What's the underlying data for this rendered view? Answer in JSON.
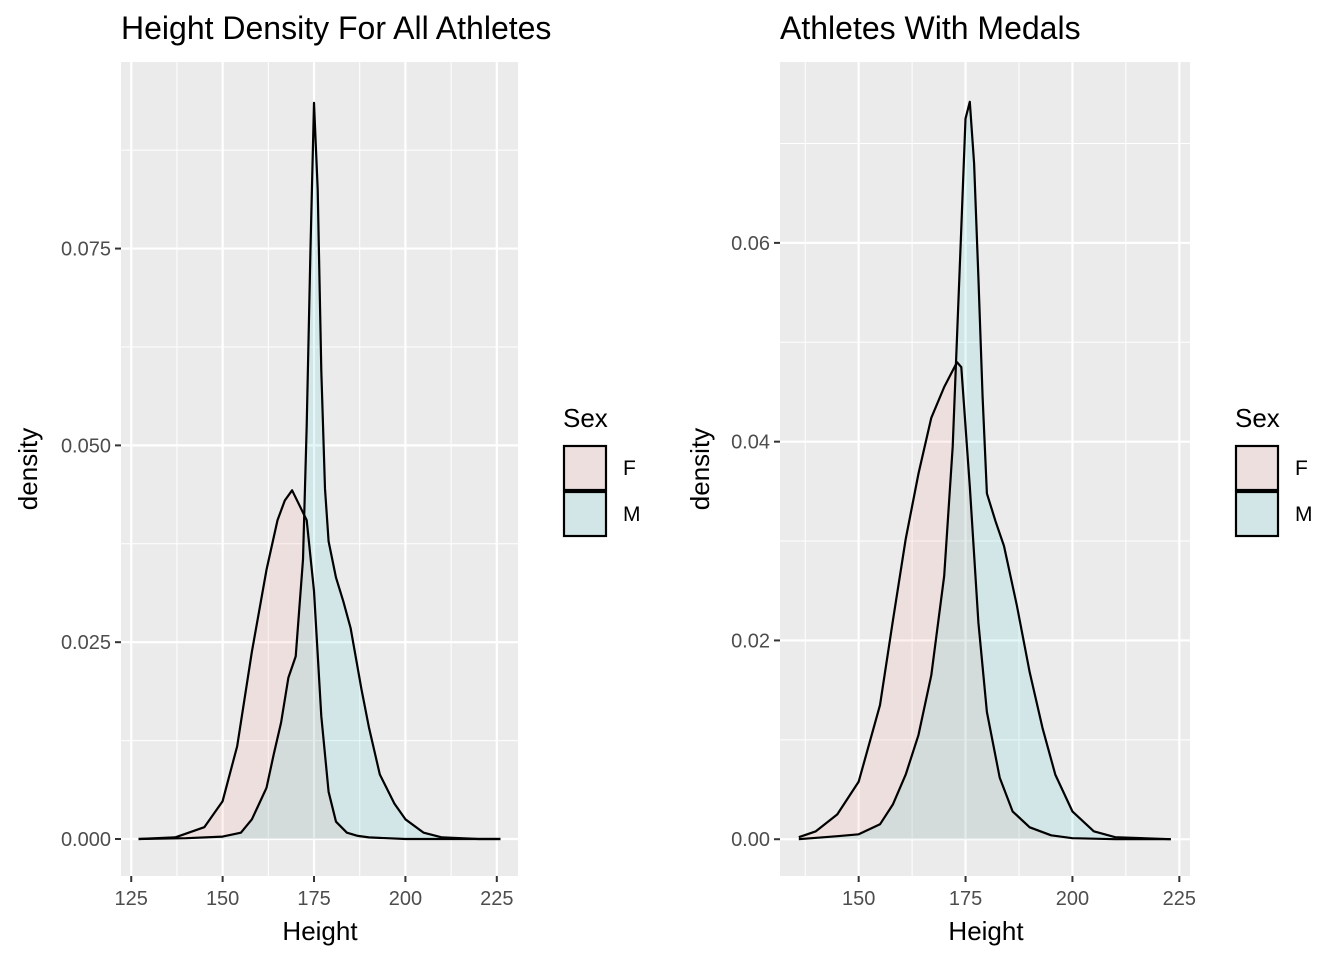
{
  "chart_data": [
    {
      "type": "area",
      "title": "Height Density For All Athletes",
      "xlabel": "Height",
      "ylabel": "density",
      "xlim": [
        122.2,
        230.8
      ],
      "ylim": [
        -0.0047,
        0.0987
      ],
      "xticks": [
        125,
        150,
        175,
        200,
        225
      ],
      "xtick_labels": [
        "125",
        "150",
        "175",
        "200",
        "225"
      ],
      "yticks": [
        0,
        0.025,
        0.05,
        0.075
      ],
      "ytick_labels": [
        "0.000",
        "0.025",
        "0.050",
        "0.075"
      ],
      "grid": true,
      "legend": {
        "title": "Sex",
        "position": "right"
      },
      "series": [
        {
          "name": "F",
          "fill": "#F8766D",
          "x": [
            127,
            137,
            145,
            150,
            154,
            158,
            162,
            165,
            167,
            169,
            171,
            173,
            175,
            177,
            179,
            181,
            184,
            187,
            190,
            195,
            200,
            210,
            226
          ],
          "y": [
            0,
            0.0002,
            0.0015,
            0.0048,
            0.0118,
            0.0238,
            0.0342,
            0.0405,
            0.043,
            0.0443,
            0.0424,
            0.0405,
            0.0315,
            0.0156,
            0.006,
            0.0022,
            0.0008,
            0.0004,
            0.0002,
            0.0001,
            0.0,
            0.0,
            0.0
          ]
        },
        {
          "name": "M",
          "fill": "#00BFC4",
          "x": [
            127,
            140,
            150,
            155,
            158,
            160,
            162,
            164,
            166,
            168,
            170,
            172,
            173,
            174,
            175,
            176,
            177,
            178,
            179,
            181,
            183,
            185,
            188,
            190,
            193,
            197,
            200,
            205,
            210,
            220,
            226
          ],
          "y": [
            0,
            0.0001,
            0.0003,
            0.0008,
            0.0025,
            0.0045,
            0.0065,
            0.0108,
            0.0148,
            0.0205,
            0.0232,
            0.0355,
            0.0525,
            0.0745,
            0.0935,
            0.0825,
            0.0595,
            0.0445,
            0.0378,
            0.0332,
            0.0302,
            0.0268,
            0.019,
            0.0142,
            0.0082,
            0.0045,
            0.0025,
            0.0008,
            0.0002,
            0.0,
            0.0
          ]
        }
      ]
    },
    {
      "type": "area",
      "title": "Athletes With Medals",
      "xlabel": "Height",
      "ylabel": "density",
      "xlim": [
        131.6,
        227.5
      ],
      "ylim": [
        -0.0037,
        0.0782
      ],
      "xticks": [
        150,
        175,
        200,
        225
      ],
      "xtick_labels": [
        "150",
        "175",
        "200",
        "225"
      ],
      "yticks": [
        0,
        0.02,
        0.04,
        0.06
      ],
      "ytick_labels": [
        "0.00",
        "0.02",
        "0.04",
        "0.06"
      ],
      "grid": true,
      "legend": {
        "title": "Sex",
        "position": "right"
      },
      "series": [
        {
          "name": "F",
          "fill": "#F8766D",
          "x": [
            136,
            140,
            145,
            150,
            155,
            158,
            161,
            164,
            167,
            170,
            173,
            174,
            176,
            178,
            180,
            183,
            186,
            190,
            195,
            200,
            210,
            223
          ],
          "y": [
            0.0002,
            0.0008,
            0.0025,
            0.0058,
            0.0135,
            0.022,
            0.0302,
            0.0368,
            0.0424,
            0.0455,
            0.048,
            0.0475,
            0.0355,
            0.0218,
            0.0128,
            0.0062,
            0.0028,
            0.0012,
            0.0004,
            0.0001,
            0.0,
            0.0
          ]
        },
        {
          "name": "M",
          "fill": "#00BFC4",
          "x": [
            136,
            145,
            150,
            155,
            158,
            161,
            164,
            167,
            170,
            172,
            174,
            175,
            176,
            177,
            178,
            179,
            180,
            182,
            184,
            187,
            190,
            193,
            196,
            200,
            205,
            210,
            223
          ],
          "y": [
            0,
            0.0003,
            0.0005,
            0.0015,
            0.0035,
            0.0065,
            0.0105,
            0.0165,
            0.0265,
            0.0395,
            0.0615,
            0.0725,
            0.0742,
            0.068,
            0.0565,
            0.0445,
            0.0348,
            0.032,
            0.0295,
            0.0235,
            0.0168,
            0.0112,
            0.0065,
            0.0028,
            0.0008,
            0.0002,
            0.0
          ]
        }
      ]
    }
  ]
}
